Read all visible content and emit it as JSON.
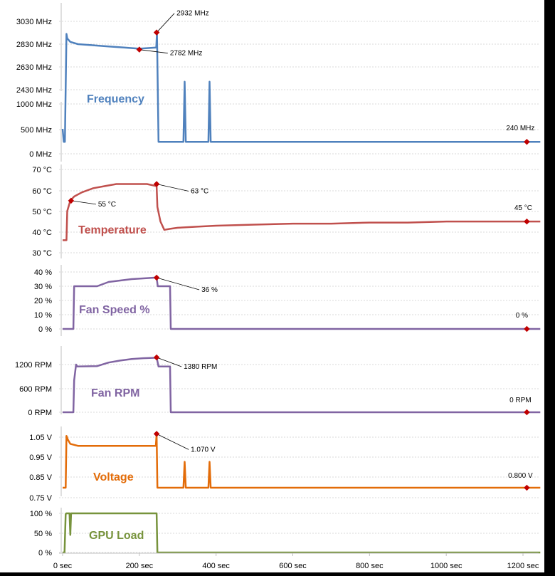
{
  "chart_data": [
    {
      "type": "line",
      "title": "Frequency",
      "color": "#4f81bd",
      "tick_labels": [
        "3030 MHz",
        "2830 MHz",
        "2630 MHz",
        "2430 MHz",
        "1000 MHz",
        "500 MHz",
        "0 MHz"
      ],
      "ylim": [
        0,
        3030
      ],
      "axis_break": true,
      "series": [
        {
          "x": [
            0,
            3,
            6,
            10,
            12,
            20,
            40,
            80,
            120,
            160,
            200,
            244,
            246,
            250,
            300,
            315,
            318,
            321,
            330,
            380,
            383,
            386,
            400,
            500,
            600,
            700,
            800,
            900,
            1000,
            1100,
            1200,
            1245
          ],
          "y": [
            500,
            240,
            240,
            2920,
            2880,
            2850,
            2830,
            2820,
            2810,
            2800,
            2790,
            2800,
            2932,
            240,
            240,
            240,
            2500,
            240,
            240,
            240,
            2500,
            240,
            240,
            240,
            240,
            240,
            240,
            240,
            240,
            240,
            240,
            240
          ]
        }
      ],
      "annotations": [
        {
          "label": "2932 MHz",
          "x": 245,
          "y": 2932
        },
        {
          "label": "2782 MHz",
          "x": 200,
          "y": 2782
        },
        {
          "label": "240 MHz",
          "x": 1210,
          "y": 240
        }
      ]
    },
    {
      "type": "line",
      "title": "Temperature",
      "color": "#c0504d",
      "tick_labels": [
        "70 °C",
        "60 °C",
        "50 °C",
        "40 °C",
        "30 °C"
      ],
      "ylim": [
        30,
        70
      ],
      "series": [
        {
          "x": [
            0,
            10,
            12,
            20,
            30,
            50,
            80,
            110,
            140,
            170,
            200,
            220,
            245,
            247,
            255,
            265,
            280,
            300,
            350,
            400,
            500,
            600,
            700,
            800,
            900,
            1000,
            1100,
            1200,
            1245
          ],
          "y": [
            36,
            36,
            50,
            55,
            57,
            59,
            61,
            62,
            63,
            63,
            63,
            63,
            62,
            52,
            45,
            41,
            41.5,
            42,
            42.5,
            43,
            43.5,
            44,
            44,
            44.5,
            44.5,
            45,
            45,
            45,
            45
          ]
        }
      ],
      "annotations": [
        {
          "label": "63 °C",
          "x": 245,
          "y": 63
        },
        {
          "label": "55 °C",
          "x": 22,
          "y": 55
        },
        {
          "label": "45 °C",
          "x": 1210,
          "y": 45
        }
      ]
    },
    {
      "type": "line",
      "title": "Fan Speed %",
      "color": "#8064a2",
      "tick_labels": [
        "40 %",
        "30 %",
        "20 %",
        "10 %",
        "0 %"
      ],
      "ylim": [
        0,
        40
      ],
      "series": [
        {
          "x": [
            0,
            28,
            30,
            90,
            120,
            150,
            180,
            210,
            240,
            245,
            248,
            280,
            282,
            1245
          ],
          "y": [
            0,
            0,
            30,
            30,
            33,
            34,
            35,
            35.5,
            36,
            36,
            30,
            30,
            0,
            0
          ]
        }
      ],
      "annotations": [
        {
          "label": "36 %",
          "x": 245,
          "y": 36
        },
        {
          "label": "0 %",
          "x": 1210,
          "y": 0
        }
      ]
    },
    {
      "type": "line",
      "title": "Fan RPM",
      "color": "#8064a2",
      "tick_labels": [
        "1200 RPM",
        "600 RPM",
        "0 RPM"
      ],
      "ylim": [
        0,
        1500
      ],
      "series": [
        {
          "x": [
            0,
            28,
            30,
            35,
            38,
            90,
            120,
            150,
            180,
            210,
            240,
            245,
            250,
            280,
            282,
            1245
          ],
          "y": [
            0,
            0,
            800,
            1200,
            1150,
            1160,
            1250,
            1300,
            1340,
            1360,
            1370,
            1380,
            1150,
            1150,
            0,
            0
          ]
        }
      ],
      "annotations": [
        {
          "label": "1380 RPM",
          "x": 245,
          "y": 1380
        },
        {
          "label": "0 RPM",
          "x": 1210,
          "y": 0
        }
      ]
    },
    {
      "type": "line",
      "title": "Voltage",
      "color": "#e36c09",
      "tick_labels": [
        "1.05 V",
        "0.95 V",
        "0.85 V",
        "0.75 V"
      ],
      "ylim": [
        0.75,
        1.09
      ],
      "series": [
        {
          "x": [
            0,
            8,
            10,
            14,
            20,
            40,
            80,
            120,
            160,
            200,
            243,
            245,
            247,
            300,
            315,
            318,
            321,
            380,
            383,
            386,
            500,
            600,
            700,
            800,
            900,
            1000,
            1100,
            1200,
            1245
          ],
          "y": [
            0.8,
            0.8,
            1.06,
            1.04,
            1.02,
            1.01,
            1.01,
            1.01,
            1.01,
            1.01,
            1.01,
            1.07,
            0.8,
            0.8,
            0.8,
            0.93,
            0.8,
            0.8,
            0.93,
            0.8,
            0.8,
            0.8,
            0.8,
            0.8,
            0.8,
            0.8,
            0.8,
            0.8,
            0.8
          ]
        }
      ],
      "annotations": [
        {
          "label": "1.070 V",
          "x": 245,
          "y": 1.07
        },
        {
          "label": "0.800 V",
          "x": 1210,
          "y": 0.8
        }
      ]
    },
    {
      "type": "line",
      "title": "GPU Load",
      "color": "#77933c",
      "tick_labels": [
        "100 %",
        "50 %",
        "0 %"
      ],
      "ylim": [
        0,
        100
      ],
      "x_tick_labels": [
        "0 sec",
        "200 sec",
        "400 sec",
        "600 sec",
        "800 sec",
        "1000 sec",
        "1200 sec"
      ],
      "xlim": [
        0,
        1270
      ],
      "series": [
        {
          "x": [
            0,
            5,
            8,
            10,
            18,
            20,
            22,
            25,
            30,
            245,
            247,
            1245
          ],
          "y": [
            0,
            0,
            98,
            100,
            100,
            45,
            100,
            100,
            100,
            100,
            0,
            0
          ]
        }
      ],
      "annotations": []
    }
  ]
}
